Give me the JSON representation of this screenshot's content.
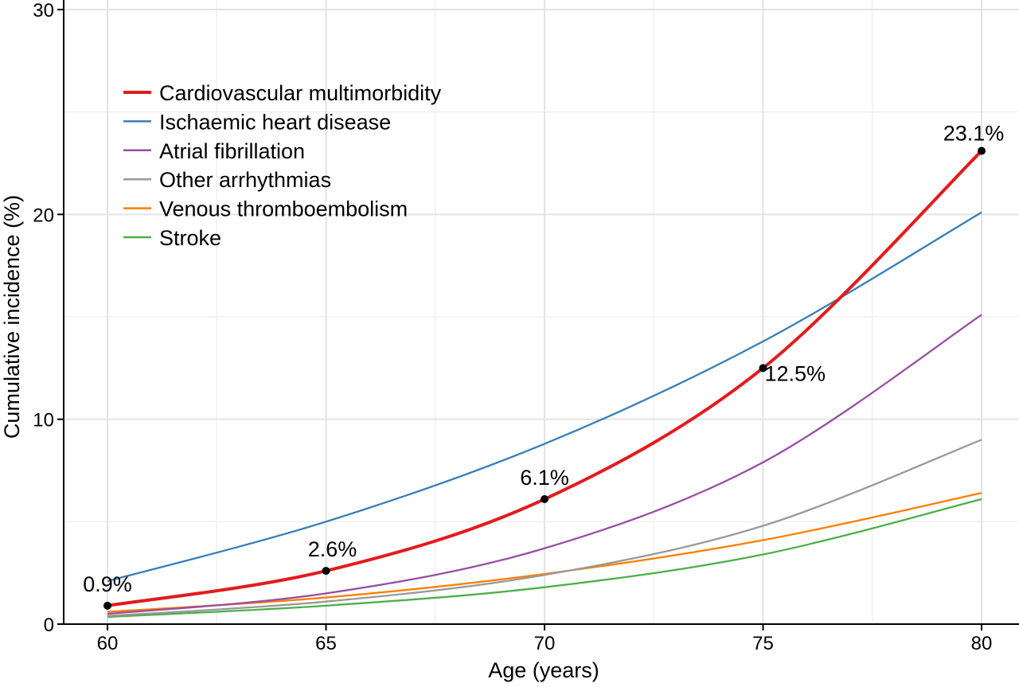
{
  "chart_data": {
    "type": "line",
    "title": "",
    "xlabel": "Age (years)",
    "ylabel": "Cumulative incidence (%)",
    "xlim": [
      59,
      80.86
    ],
    "ylim": [
      0,
      30
    ],
    "xticks": [
      60,
      65,
      70,
      75,
      80
    ],
    "yticks": [
      0,
      10,
      20,
      30
    ],
    "grid": true,
    "legend_position": "top-left",
    "x": [
      60,
      65,
      70,
      75,
      80
    ],
    "series": [
      {
        "name": "Cardiovascular multimorbidity",
        "color": "#e41a1c",
        "values": [
          0.9,
          2.6,
          6.1,
          12.5,
          23.1
        ],
        "emphasis": true
      },
      {
        "name": "Ischaemic heart disease",
        "color": "#377eb8",
        "values": [
          2.1,
          5.0,
          8.8,
          13.8,
          20.1
        ]
      },
      {
        "name": "Atrial fibrillation",
        "color": "#984ea3",
        "values": [
          0.5,
          1.5,
          3.7,
          7.9,
          15.1
        ]
      },
      {
        "name": "Other arrhythmias",
        "color": "#999999",
        "values": [
          0.4,
          1.1,
          2.4,
          4.8,
          9.0
        ]
      },
      {
        "name": "Venous thromboembolism",
        "color": "#ff7f00",
        "values": [
          0.6,
          1.3,
          2.45,
          4.1,
          6.4
        ]
      },
      {
        "name": "Stroke",
        "color": "#4daf4a",
        "values": [
          0.35,
          0.9,
          1.8,
          3.4,
          6.1
        ]
      }
    ],
    "annotations": [
      {
        "x": 60,
        "y": 0.9,
        "label": "0.9%"
      },
      {
        "x": 65,
        "y": 2.6,
        "label": "2.6%"
      },
      {
        "x": 70,
        "y": 6.1,
        "label": "6.1%"
      },
      {
        "x": 75,
        "y": 12.5,
        "label": "12.5%"
      },
      {
        "x": 80,
        "y": 23.1,
        "label": "23.1%"
      }
    ]
  }
}
